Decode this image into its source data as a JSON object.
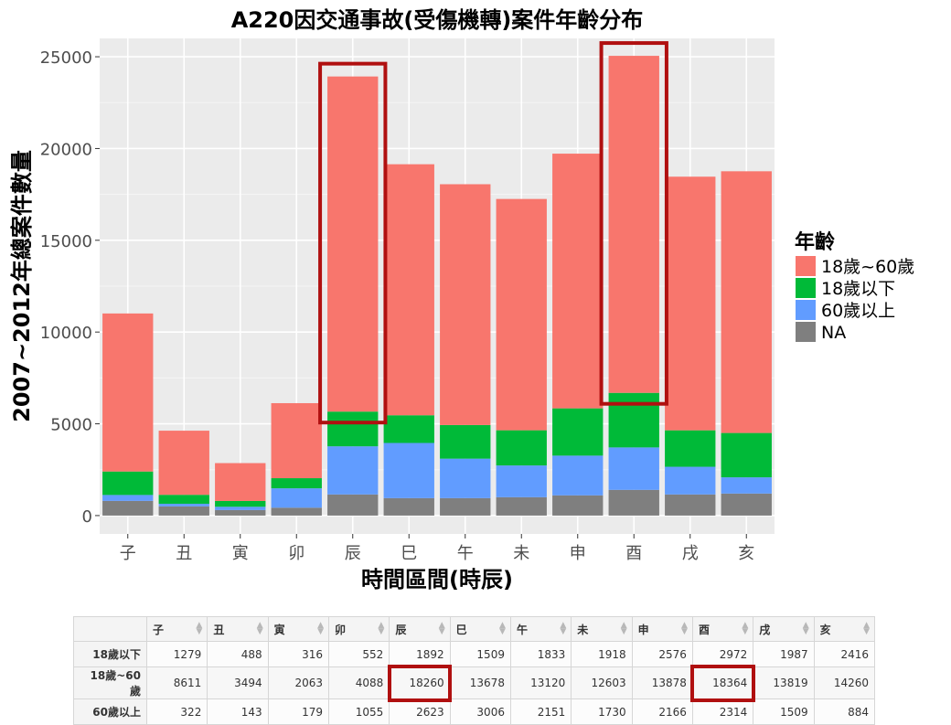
{
  "chart_data": {
    "type": "bar",
    "stacked": true,
    "title": "A220因交通事故(受傷機轉)案件年齡分布",
    "xlabel": "時間區間(時辰)",
    "ylabel": "2007~2012年總案件數量",
    "categories": [
      "子",
      "丑",
      "寅",
      "卯",
      "辰",
      "巳",
      "午",
      "未",
      "申",
      "酉",
      "戌",
      "亥"
    ],
    "ylim": [
      -1000,
      26000
    ],
    "yticks": [
      0,
      5000,
      10000,
      15000,
      20000,
      25000
    ],
    "grid": true,
    "legend_position": "right",
    "legend_title": "年齡",
    "series": [
      {
        "name": "NA",
        "color": "#7f7f7f",
        "values": [
          800,
          500,
          300,
          430,
          1150,
          950,
          950,
          1000,
          1100,
          1400,
          1150,
          1200
        ]
      },
      {
        "name": "60歲以上",
        "color": "#619cff",
        "values": [
          322,
          143,
          179,
          1055,
          2623,
          3006,
          2151,
          1730,
          2166,
          2314,
          1509,
          884
        ]
      },
      {
        "name": "18歲以下",
        "color": "#00ba38",
        "values": [
          1279,
          488,
          316,
          552,
          1892,
          1509,
          1833,
          1918,
          2576,
          2972,
          1987,
          2416
        ]
      },
      {
        "name": "18歲~60歲",
        "color": "#f8766d",
        "values": [
          8611,
          3494,
          2063,
          4088,
          18260,
          13678,
          13120,
          12603,
          13878,
          18364,
          13819,
          14260
        ]
      }
    ],
    "legend_order": [
      "18歲~60歲",
      "18歲以下",
      "60歲以上",
      "NA"
    ],
    "highlight_categories": [
      "辰",
      "酉"
    ],
    "highlight_color": "#b01010"
  },
  "table": {
    "corner": "",
    "columns": [
      "子",
      "丑",
      "寅",
      "卯",
      "辰",
      "巳",
      "午",
      "未",
      "申",
      "酉",
      "戌",
      "亥"
    ],
    "rows": [
      {
        "label": "18歲以下",
        "cells": [
          "1279",
          "488",
          "316",
          "552",
          "1892",
          "1509",
          "1833",
          "1918",
          "2576",
          "2972",
          "1987",
          "2416"
        ]
      },
      {
        "label": "18歲~60歲",
        "cells": [
          "8611",
          "3494",
          "2063",
          "4088",
          "18260",
          "13678",
          "13120",
          "12603",
          "13878",
          "18364",
          "13819",
          "14260"
        ]
      },
      {
        "label": "60歲以上",
        "cells": [
          "322",
          "143",
          "179",
          "1055",
          "2623",
          "3006",
          "2151",
          "1730",
          "2166",
          "2314",
          "1509",
          "884"
        ]
      }
    ],
    "highlight_cells": [
      {
        "row": 1,
        "col": 4
      },
      {
        "row": 1,
        "col": 9
      }
    ]
  }
}
